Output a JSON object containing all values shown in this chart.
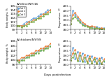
{
  "title_top": "A/feline/NY/16",
  "title_bottom": "A/chicken/NY/99",
  "xlabel": "Days postinfection",
  "ylabel_bw": "Body weight, %",
  "ylabel_temp": "Temperature, °C",
  "days": [
    0,
    1,
    2,
    3,
    4,
    5,
    6,
    7,
    8,
    9,
    10,
    11,
    12,
    13,
    14
  ],
  "cat_colors": [
    "#5b9bd5",
    "#ed7d31",
    "#70ad47",
    "#ff0000"
  ],
  "cat_labels": [
    "Cat 1",
    "Cat 2",
    "Cat 3"
  ],
  "bw_feline_cat1": [
    100,
    100,
    100,
    100.5,
    101,
    101,
    101.5,
    102,
    102,
    102.5,
    103,
    103,
    103.5,
    104,
    104
  ],
  "bw_feline_cat2": [
    100,
    100,
    100,
    100,
    100.5,
    101,
    101,
    101.5,
    101.5,
    102,
    102.5,
    103,
    103,
    103.5,
    104
  ],
  "bw_feline_cat3": [
    100,
    100,
    99.5,
    100,
    100,
    100.5,
    101,
    101,
    101.5,
    102,
    102,
    102.5,
    103,
    103,
    103.5
  ],
  "bw_chicken_cat1": [
    100,
    100,
    100,
    101,
    101,
    102,
    102,
    103,
    103,
    104,
    104,
    105,
    105,
    106,
    106
  ],
  "bw_chicken_cat2": [
    100,
    100,
    101,
    101,
    102,
    102,
    103,
    103,
    104,
    104,
    105,
    105,
    106,
    106,
    107
  ],
  "bw_chicken_cat3": [
    100,
    99,
    100,
    100,
    101,
    101,
    102,
    102,
    103,
    103,
    104,
    104,
    105,
    105,
    106
  ],
  "temp_feline_cat1": [
    38.6,
    40.0,
    39.6,
    39.2,
    38.9,
    38.6,
    38.5,
    38.4,
    38.3,
    38.3,
    38.2,
    38.3,
    38.2,
    38.1,
    38.2
  ],
  "temp_feline_cat2": [
    38.6,
    39.6,
    39.8,
    39.4,
    39.1,
    38.8,
    38.6,
    38.4,
    38.3,
    38.4,
    38.3,
    38.2,
    38.1,
    38.2,
    38.1
  ],
  "temp_feline_cat3": [
    38.6,
    39.2,
    39.4,
    39.0,
    38.8,
    38.5,
    38.4,
    38.3,
    38.2,
    38.2,
    38.1,
    38.2,
    38.1,
    38.0,
    38.1
  ],
  "temp_chicken_cat1": [
    38.5,
    39.8,
    38.6,
    39.4,
    38.4,
    39.2,
    38.3,
    39.0,
    38.4,
    38.9,
    38.3,
    38.7,
    38.2,
    38.8,
    38.3
  ],
  "temp_chicken_cat2": [
    38.5,
    39.2,
    39.6,
    38.5,
    39.3,
    38.4,
    39.1,
    38.3,
    38.9,
    38.2,
    38.8,
    38.2,
    38.7,
    38.1,
    38.6
  ],
  "temp_chicken_cat3": [
    38.5,
    38.8,
    39.2,
    38.4,
    39.0,
    38.3,
    38.8,
    38.2,
    38.7,
    38.2,
    38.6,
    38.1,
    38.5,
    38.1,
    38.4
  ],
  "bw_ylim_feline": [
    99,
    105
  ],
  "bw_ylim_chicken": [
    98,
    108
  ],
  "temp_ylim": [
    38.0,
    40.5
  ],
  "bw_yticks_feline": [
    99,
    100,
    101,
    102,
    103,
    104,
    105
  ],
  "bw_yticks_chicken": [
    98,
    100,
    102,
    104,
    106,
    108
  ],
  "temp_yticks": [
    38.0,
    38.5,
    39.0,
    39.5,
    40.0,
    40.5
  ],
  "xticks": [
    0,
    2,
    4,
    6,
    8,
    10,
    12,
    14
  ],
  "background": "#ffffff"
}
